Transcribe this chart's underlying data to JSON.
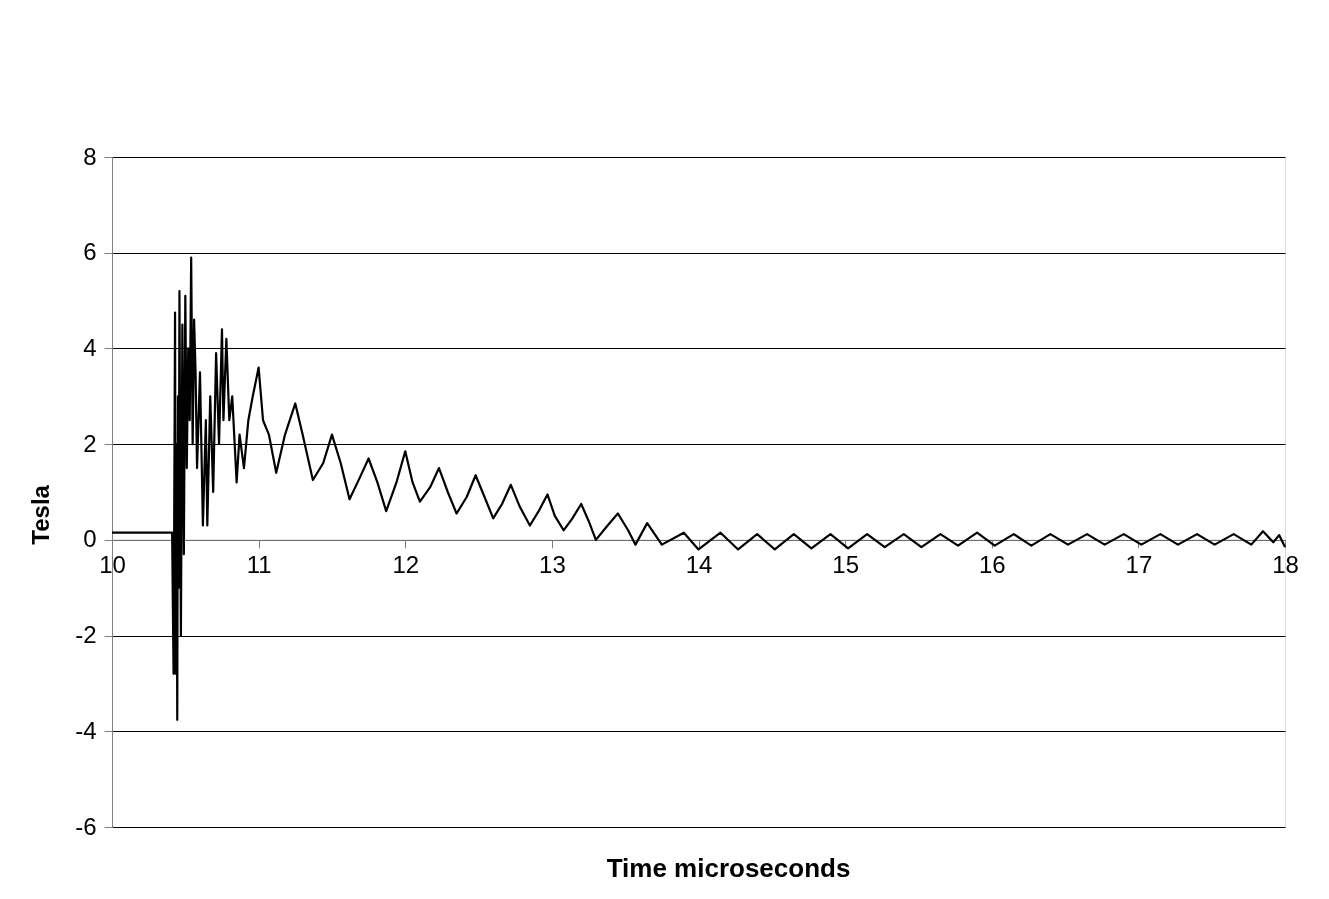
{
  "chart_data": {
    "type": "line",
    "xlabel": "Time microseconds",
    "ylabel": "Tesla",
    "xlim": [
      10,
      18
    ],
    "xticks": [
      10,
      11,
      12,
      13,
      14,
      15,
      16,
      17,
      18
    ],
    "ylim": [
      -6,
      8
    ],
    "yticks": [
      -6,
      -4,
      -2,
      0,
      2,
      4,
      6,
      8
    ],
    "grid": "y",
    "marker": "none",
    "line_style": "solid",
    "series": [
      {
        "color": "#000000",
        "x": [
          10.0,
          10.1,
          10.2,
          10.3,
          10.41,
          10.42,
          10.43,
          10.435,
          10.44,
          10.445,
          10.45,
          10.455,
          10.46,
          10.47,
          10.48,
          10.49,
          10.5,
          10.51,
          10.52,
          10.53,
          10.54,
          10.55,
          10.56,
          10.57,
          10.58,
          10.6,
          10.62,
          10.64,
          10.65,
          10.67,
          10.69,
          10.71,
          10.73,
          10.75,
          10.76,
          10.78,
          10.8,
          10.82,
          10.85,
          10.87,
          10.9,
          10.93,
          10.96,
          11.0,
          11.03,
          11.07,
          11.12,
          11.18,
          11.25,
          11.3,
          11.37,
          11.44,
          11.5,
          11.56,
          11.62,
          11.69,
          11.75,
          11.81,
          11.87,
          11.94,
          12.0,
          12.05,
          12.1,
          12.17,
          12.23,
          12.29,
          12.35,
          12.42,
          12.48,
          12.54,
          12.6,
          12.66,
          12.72,
          12.78,
          12.85,
          12.91,
          12.97,
          13.02,
          13.08,
          13.14,
          13.2,
          13.25,
          13.3,
          13.38,
          13.45,
          13.52,
          13.57,
          13.65,
          13.75,
          13.9,
          14.0,
          14.15,
          14.27,
          14.4,
          14.52,
          14.65,
          14.77,
          14.9,
          15.02,
          15.15,
          15.27,
          15.4,
          15.52,
          15.65,
          15.77,
          15.9,
          16.02,
          16.15,
          16.27,
          16.4,
          16.52,
          16.65,
          16.77,
          16.9,
          17.02,
          17.15,
          17.27,
          17.4,
          17.52,
          17.65,
          17.77,
          17.85,
          17.92,
          17.96,
          18.0
        ],
        "values": [
          0.15,
          0.15,
          0.15,
          0.15,
          0.15,
          -2.8,
          4.75,
          -2.8,
          2.0,
          -3.76,
          3.0,
          -1.0,
          5.2,
          -2.0,
          4.5,
          -0.3,
          5.1,
          1.5,
          4.0,
          2.5,
          5.9,
          2.0,
          4.6,
          3.5,
          1.5,
          3.5,
          0.3,
          2.5,
          0.3,
          3.0,
          1.0,
          3.9,
          2.0,
          4.4,
          2.5,
          4.2,
          2.5,
          3.0,
          1.2,
          2.2,
          1.5,
          2.5,
          3.0,
          3.6,
          2.5,
          2.2,
          1.4,
          2.2,
          2.85,
          2.2,
          1.25,
          1.6,
          2.2,
          1.6,
          0.85,
          1.3,
          1.7,
          1.2,
          0.6,
          1.2,
          1.85,
          1.2,
          0.8,
          1.1,
          1.5,
          1.0,
          0.55,
          0.9,
          1.35,
          0.9,
          0.45,
          0.75,
          1.15,
          0.7,
          0.3,
          0.6,
          0.95,
          0.5,
          0.2,
          0.45,
          0.75,
          0.4,
          0.0,
          0.3,
          0.55,
          0.2,
          -0.1,
          0.35,
          -0.1,
          0.15,
          -0.2,
          0.15,
          -0.2,
          0.12,
          -0.2,
          0.12,
          -0.18,
          0.12,
          -0.18,
          0.12,
          -0.15,
          0.12,
          -0.15,
          0.12,
          -0.12,
          0.15,
          -0.12,
          0.12,
          -0.12,
          0.12,
          -0.1,
          0.12,
          -0.1,
          0.12,
          -0.1,
          0.12,
          -0.1,
          0.12,
          -0.1,
          0.12,
          -0.1,
          0.18,
          -0.05,
          0.1,
          -0.15
        ]
      }
    ]
  }
}
